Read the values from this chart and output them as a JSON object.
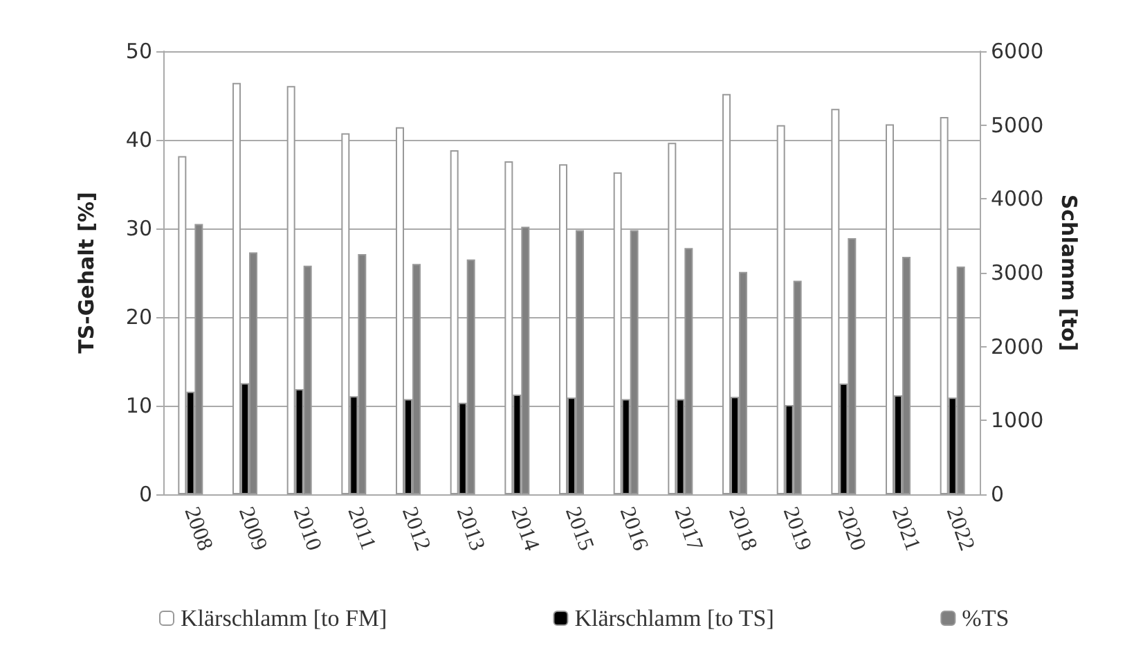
{
  "chart_data": {
    "type": "bar",
    "categories": [
      "2008",
      "2009",
      "2010",
      "2011",
      "2012",
      "2013",
      "2014",
      "2015",
      "2016",
      "2017",
      "2018",
      "2019",
      "2020",
      "2021",
      "2022"
    ],
    "series": [
      {
        "name": "Klärschlamm [to FM]",
        "color": "#ffffff",
        "axis": "y2",
        "values": [
          4580,
          5570,
          5530,
          4890,
          4970,
          4660,
          4510,
          4470,
          4360,
          4760,
          5420,
          5000,
          5220,
          5010,
          5110
        ]
      },
      {
        "name": "Klärschlamm [to TS]",
        "color": "#000000",
        "axis": "y2",
        "values": [
          1390,
          1505,
          1425,
          1330,
          1290,
          1240,
          1350,
          1310,
          1290,
          1290,
          1320,
          1210,
          1500,
          1340,
          1310
        ]
      },
      {
        "name": "%TS",
        "color": "#808080",
        "values": [
          30.5,
          27.3,
          25.8,
          27.1,
          26.0,
          26.5,
          30.2,
          29.8,
          29.8,
          27.8,
          25.1,
          24.1,
          28.9,
          26.8,
          25.7
        ]
      }
    ],
    "ylabel": "TS-Gehalt [%]",
    "y2label": "Schlamm [to]",
    "ylim": [
      0,
      50
    ],
    "yticks": [
      0,
      10,
      20,
      30,
      40,
      50
    ],
    "y2lim": [
      0,
      6000
    ],
    "y2ticks": [
      0,
      1000,
      2000,
      3000,
      4000,
      5000,
      6000
    ],
    "grid": "y",
    "legend": "bottom"
  }
}
